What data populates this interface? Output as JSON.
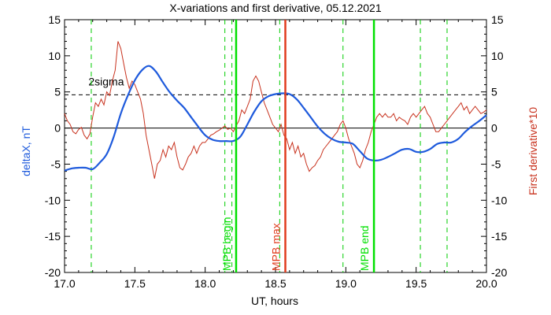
{
  "chart_data": {
    "type": "line",
    "title": "X-variations and first derivative, 05.12.2021",
    "xlabel": "UT, hours",
    "ylabel_left": "deltaX, nT",
    "ylabel_right": "First derivative*10",
    "xlim": [
      17.0,
      20.0
    ],
    "ylim": [
      -20,
      15
    ],
    "x_ticks": [
      {
        "value": 17.0,
        "label": "17.0"
      },
      {
        "value": 17.5,
        "label": "17.5"
      },
      {
        "value": 18.0,
        "label": "18.0"
      },
      {
        "value": 18.5,
        "label": "18.5"
      },
      {
        "value": 19.0,
        "label": "19.0"
      },
      {
        "value": 19.5,
        "label": "19.5"
      },
      {
        "value": 20.0,
        "label": "20.0"
      }
    ],
    "y_ticks": [
      {
        "value": 15,
        "label": "15"
      },
      {
        "value": 10,
        "label": "10"
      },
      {
        "value": 5,
        "label": "5"
      },
      {
        "value": 0,
        "label": "0"
      },
      {
        "value": -5,
        "label": "-5"
      },
      {
        "value": -10,
        "label": "-10"
      },
      {
        "value": -15,
        "label": "-15"
      },
      {
        "value": -20,
        "label": "-20"
      }
    ],
    "grid": false,
    "colors": {
      "deltaX": "#1e5adc",
      "derivative": "#c8321e",
      "mpb_lines": "#00e000",
      "max_line": "#e03c1e",
      "dashed_green": "#00cc00",
      "axis": "#000000"
    },
    "threshold": {
      "value": 4.6,
      "label": "2sigma"
    },
    "zero_line": 0,
    "dashed_verticals": [
      17.19,
      18.14,
      18.19,
      18.53,
      18.98,
      19.53,
      19.72
    ],
    "markers": [
      {
        "x": 18.22,
        "label": "MPB begin",
        "kind": "mpb"
      },
      {
        "x": 18.57,
        "label": "MPB max",
        "kind": "max"
      },
      {
        "x": 19.2,
        "label": "MPB end",
        "kind": "mpb"
      }
    ],
    "series_deltaX": [
      [
        17.0,
        -5.9
      ],
      [
        17.05,
        -5.6
      ],
      [
        17.1,
        -5.5
      ],
      [
        17.15,
        -5.5
      ],
      [
        17.2,
        -5.7
      ],
      [
        17.25,
        -4.8
      ],
      [
        17.3,
        -3.6
      ],
      [
        17.35,
        -1.2
      ],
      [
        17.4,
        2.0
      ],
      [
        17.45,
        4.5
      ],
      [
        17.5,
        6.6
      ],
      [
        17.55,
        8.0
      ],
      [
        17.6,
        8.6
      ],
      [
        17.65,
        7.8
      ],
      [
        17.7,
        6.3
      ],
      [
        17.75,
        4.9
      ],
      [
        17.8,
        3.8
      ],
      [
        17.85,
        2.8
      ],
      [
        17.9,
        1.5
      ],
      [
        17.95,
        0.2
      ],
      [
        18.0,
        -1.0
      ],
      [
        18.05,
        -1.6
      ],
      [
        18.1,
        -1.8
      ],
      [
        18.15,
        -1.8
      ],
      [
        18.2,
        -1.8
      ],
      [
        18.25,
        -1.2
      ],
      [
        18.3,
        0.5
      ],
      [
        18.35,
        2.3
      ],
      [
        18.4,
        3.7
      ],
      [
        18.45,
        4.4
      ],
      [
        18.5,
        4.7
      ],
      [
        18.55,
        4.8
      ],
      [
        18.6,
        4.7
      ],
      [
        18.65,
        4.0
      ],
      [
        18.7,
        2.8
      ],
      [
        18.75,
        1.5
      ],
      [
        18.8,
        0.2
      ],
      [
        18.85,
        -0.8
      ],
      [
        18.9,
        -1.5
      ],
      [
        18.95,
        -1.9
      ],
      [
        19.0,
        -2.0
      ],
      [
        19.05,
        -2.2
      ],
      [
        19.1,
        -3.2
      ],
      [
        19.15,
        -4.2
      ],
      [
        19.2,
        -4.5
      ],
      [
        19.25,
        -4.4
      ],
      [
        19.3,
        -4.0
      ],
      [
        19.35,
        -3.5
      ],
      [
        19.4,
        -3.0
      ],
      [
        19.45,
        -2.9
      ],
      [
        19.5,
        -3.3
      ],
      [
        19.55,
        -3.3
      ],
      [
        19.6,
        -2.9
      ],
      [
        19.65,
        -2.2
      ],
      [
        19.7,
        -2.0
      ],
      [
        19.75,
        -2.0
      ],
      [
        19.8,
        -1.5
      ],
      [
        19.85,
        -0.5
      ],
      [
        19.9,
        0.3
      ],
      [
        19.95,
        1.0
      ],
      [
        20.0,
        1.8
      ]
    ],
    "series_derivative": [
      [
        17.0,
        2.0
      ],
      [
        17.02,
        1.0
      ],
      [
        17.04,
        0.5
      ],
      [
        17.06,
        -0.5
      ],
      [
        17.08,
        -0.8
      ],
      [
        17.1,
        -0.2
      ],
      [
        17.12,
        0.1
      ],
      [
        17.14,
        -1.0
      ],
      [
        17.16,
        -1.5
      ],
      [
        17.18,
        -0.8
      ],
      [
        17.2,
        1.5
      ],
      [
        17.22,
        3.5
      ],
      [
        17.24,
        3.0
      ],
      [
        17.26,
        4.0
      ],
      [
        17.28,
        3.2
      ],
      [
        17.3,
        5.0
      ],
      [
        17.32,
        4.5
      ],
      [
        17.34,
        6.5
      ],
      [
        17.36,
        8.0
      ],
      [
        17.38,
        12.0
      ],
      [
        17.4,
        11.0
      ],
      [
        17.42,
        9.0
      ],
      [
        17.44,
        7.0
      ],
      [
        17.46,
        5.5
      ],
      [
        17.48,
        6.5
      ],
      [
        17.5,
        6.0
      ],
      [
        17.52,
        5.0
      ],
      [
        17.54,
        4.0
      ],
      [
        17.56,
        2.0
      ],
      [
        17.58,
        -1.0
      ],
      [
        17.6,
        -3.0
      ],
      [
        17.62,
        -5.0
      ],
      [
        17.64,
        -7.0
      ],
      [
        17.66,
        -5.0
      ],
      [
        17.68,
        -4.5
      ],
      [
        17.7,
        -3.0
      ],
      [
        17.72,
        -4.0
      ],
      [
        17.74,
        -2.5
      ],
      [
        17.76,
        -3.0
      ],
      [
        17.78,
        -2.0
      ],
      [
        17.8,
        -4.0
      ],
      [
        17.82,
        -5.5
      ],
      [
        17.84,
        -5.8
      ],
      [
        17.86,
        -5.0
      ],
      [
        17.88,
        -4.0
      ],
      [
        17.9,
        -3.5
      ],
      [
        17.92,
        -2.5
      ],
      [
        17.94,
        -3.5
      ],
      [
        17.96,
        -2.5
      ],
      [
        17.98,
        -2.0
      ],
      [
        18.0,
        -2.0
      ],
      [
        18.02,
        -1.5
      ],
      [
        18.04,
        -1.0
      ],
      [
        18.06,
        -0.8
      ],
      [
        18.08,
        -0.5
      ],
      [
        18.1,
        -0.3
      ],
      [
        18.12,
        0.0
      ],
      [
        18.14,
        0.3
      ],
      [
        18.16,
        -0.2
      ],
      [
        18.18,
        0.0
      ],
      [
        18.2,
        -0.5
      ],
      [
        18.22,
        0.3
      ],
      [
        18.24,
        1.0
      ],
      [
        18.26,
        2.5
      ],
      [
        18.28,
        2.0
      ],
      [
        18.3,
        3.0
      ],
      [
        18.32,
        4.0
      ],
      [
        18.34,
        6.5
      ],
      [
        18.36,
        7.2
      ],
      [
        18.38,
        6.5
      ],
      [
        18.4,
        5.0
      ],
      [
        18.42,
        3.5
      ],
      [
        18.44,
        2.5
      ],
      [
        18.46,
        1.5
      ],
      [
        18.48,
        0.5
      ],
      [
        18.5,
        0.0
      ],
      [
        18.52,
        -0.5
      ],
      [
        18.54,
        0.5
      ],
      [
        18.56,
        -1.0
      ],
      [
        18.58,
        -1.5
      ],
      [
        18.6,
        -3.0
      ],
      [
        18.62,
        -2.0
      ],
      [
        18.64,
        -3.5
      ],
      [
        18.66,
        -2.5
      ],
      [
        18.68,
        -4.0
      ],
      [
        18.7,
        -3.5
      ],
      [
        18.72,
        -5.0
      ],
      [
        18.74,
        -6.0
      ],
      [
        18.76,
        -5.5
      ],
      [
        18.78,
        -5.2
      ],
      [
        18.8,
        -4.5
      ],
      [
        18.82,
        -4.0
      ],
      [
        18.84,
        -3.0
      ],
      [
        18.86,
        -2.5
      ],
      [
        18.88,
        -2.0
      ],
      [
        18.9,
        -1.5
      ],
      [
        18.92,
        -1.0
      ],
      [
        18.94,
        -0.5
      ],
      [
        18.96,
        0.5
      ],
      [
        18.98,
        1.0
      ],
      [
        19.0,
        0.0
      ],
      [
        19.02,
        -1.5
      ],
      [
        19.04,
        -2.5
      ],
      [
        19.06,
        -3.5
      ],
      [
        19.08,
        -5.0
      ],
      [
        19.1,
        -5.5
      ],
      [
        19.12,
        -4.5
      ],
      [
        19.14,
        -3.0
      ],
      [
        19.16,
        -2.0
      ],
      [
        19.18,
        -0.5
      ],
      [
        19.2,
        0.5
      ],
      [
        19.22,
        1.5
      ],
      [
        19.24,
        2.0
      ],
      [
        19.26,
        1.5
      ],
      [
        19.28,
        2.0
      ],
      [
        19.3,
        1.5
      ],
      [
        19.32,
        1.5
      ],
      [
        19.34,
        2.0
      ],
      [
        19.36,
        1.0
      ],
      [
        19.38,
        1.5
      ],
      [
        19.4,
        1.2
      ],
      [
        19.42,
        1.0
      ],
      [
        19.44,
        0.5
      ],
      [
        19.46,
        1.5
      ],
      [
        19.48,
        2.0
      ],
      [
        19.5,
        1.5
      ],
      [
        19.52,
        2.0
      ],
      [
        19.54,
        2.5
      ],
      [
        19.56,
        3.0
      ],
      [
        19.58,
        2.0
      ],
      [
        19.6,
        1.5
      ],
      [
        19.62,
        0.5
      ],
      [
        19.64,
        -0.5
      ],
      [
        19.66,
        -0.5
      ],
      [
        19.68,
        0.0
      ],
      [
        19.7,
        0.5
      ],
      [
        19.72,
        1.0
      ],
      [
        19.74,
        1.5
      ],
      [
        19.76,
        2.0
      ],
      [
        19.78,
        2.5
      ],
      [
        19.8,
        3.0
      ],
      [
        19.82,
        3.5
      ],
      [
        19.84,
        2.5
      ],
      [
        19.86,
        3.0
      ],
      [
        19.88,
        2.0
      ],
      [
        19.9,
        2.5
      ],
      [
        19.92,
        3.0
      ],
      [
        19.94,
        2.5
      ],
      [
        19.96,
        2.0
      ],
      [
        19.98,
        2.2
      ],
      [
        20.0,
        2.5
      ]
    ]
  }
}
